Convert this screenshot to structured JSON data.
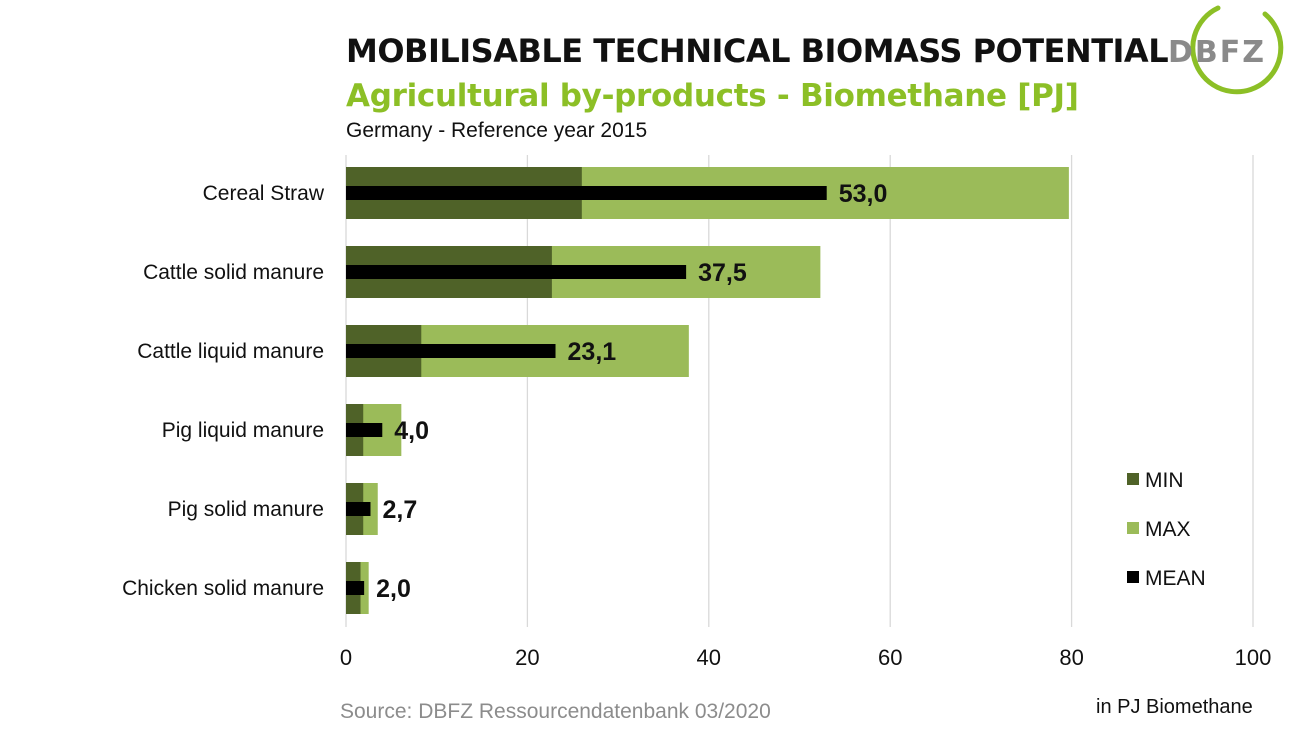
{
  "title": "MOBILISABLE TECHNICAL BIOMASS POTENTIAL",
  "subtitle": "Agricultural by-products - Biomethane [PJ]",
  "note": "Germany - Reference year 2015",
  "source": "Source: DBFZ Ressourcendatenbank 03/2020",
  "unit_label": "in PJ Biomethane",
  "logo_text": "DBFZ",
  "colors": {
    "min": "#4f6228",
    "max": "#9bbb59",
    "mean": "#000000",
    "accent": "#8cbf26"
  },
  "chart_data": {
    "type": "bar",
    "orientation": "horizontal",
    "categories": [
      "Cereal Straw",
      "Cattle solid manure",
      "Cattle liquid manure",
      "Pig liquid manure",
      "Pig solid manure",
      "Chicken solid manure"
    ],
    "series": [
      {
        "name": "MIN",
        "values": [
          26,
          22.7,
          8.3,
          1.9,
          1.9,
          1.6
        ]
      },
      {
        "name": "MAX",
        "values": [
          79.7,
          52.3,
          37.8,
          6.1,
          3.5,
          2.5
        ]
      },
      {
        "name": "MEAN",
        "values": [
          53.0,
          37.5,
          23.1,
          4.0,
          2.7,
          2.0
        ]
      }
    ],
    "data_labels": [
      "53,0",
      "37,5",
      "23,1",
      "4,0",
      "2,7",
      "2,0"
    ],
    "xlim": [
      0,
      100
    ],
    "xticks": [
      0,
      20,
      40,
      60,
      80,
      100
    ],
    "xtick_labels": [
      "0",
      "20",
      "40",
      "60",
      "80",
      "100"
    ],
    "grid": true,
    "legend_position": "right"
  }
}
